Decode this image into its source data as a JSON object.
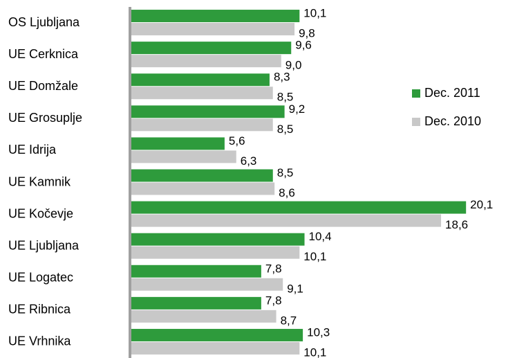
{
  "chart_data": {
    "type": "bar",
    "orientation": "horizontal",
    "categories": [
      "OS Ljubljana",
      "UE Cerknica",
      "UE Domžale",
      "UE Grosuplje",
      "UE Idrija",
      "UE Kamnik",
      "UE Kočevje",
      "UE Ljubljana",
      "UE Logatec",
      "UE Ribnica",
      "UE Vrhnika"
    ],
    "series": [
      {
        "name": "Dec. 2011",
        "color": "#2e9b3c",
        "values": [
          10.1,
          9.6,
          8.3,
          9.2,
          5.6,
          8.5,
          20.1,
          10.4,
          7.8,
          7.8,
          10.3
        ],
        "value_labels": [
          "10,1",
          "9,6",
          "8,3",
          "9,2",
          "5,6",
          "8,5",
          "20,1",
          "10,4",
          "7,8",
          "7,8",
          "10,3"
        ]
      },
      {
        "name": "Dec. 2010",
        "color": "#c8c8c8",
        "values": [
          9.8,
          9.0,
          8.5,
          8.5,
          6.3,
          8.6,
          18.6,
          10.1,
          9.1,
          8.7,
          10.1
        ],
        "value_labels": [
          "9,8",
          "9,0",
          "8,5",
          "8,5",
          "6,3",
          "8,6",
          "18,6",
          "10,1",
          "9,1",
          "8,7",
          "10,1"
        ]
      }
    ],
    "xlim": [
      0,
      22.5
    ],
    "legend": "right"
  }
}
